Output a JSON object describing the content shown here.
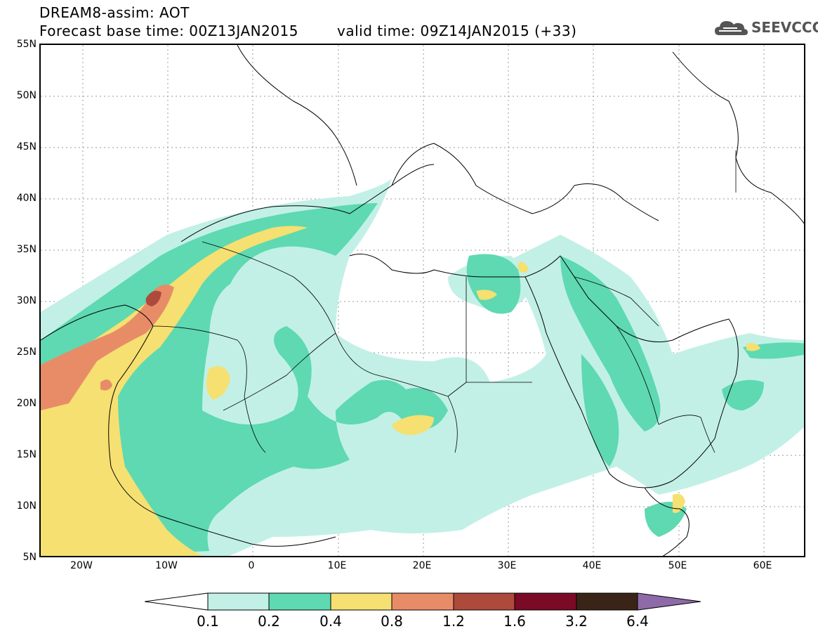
{
  "header": {
    "line1": "DREAM8-assim: AOT",
    "line2": "Forecast base time: 00Z13JAN2015",
    "valid": "valid time: 09Z14JAN2015 (+33)"
  },
  "logo": {
    "text": "SEEVCCC",
    "icon": "cloud-icon"
  },
  "axes": {
    "lat_labels": [
      "55N",
      "50N",
      "45N",
      "40N",
      "35N",
      "30N",
      "25N",
      "20N",
      "15N",
      "10N",
      "5N"
    ],
    "lon_labels": [
      "20W",
      "10W",
      "0",
      "10E",
      "20E",
      "30E",
      "40E",
      "50E",
      "60E"
    ],
    "lat_range": [
      5,
      55
    ],
    "lon_range": [
      -25,
      65
    ]
  },
  "colorbar": {
    "levels": [
      "0.1",
      "0.2",
      "0.4",
      "0.8",
      "1.2",
      "1.6",
      "3.2",
      "6.4"
    ],
    "colors": [
      "#c2f0e6",
      "#5ed9b1",
      "#f5e071",
      "#e88c68",
      "#ae4a3c",
      "#7a0a26",
      "#3a2418",
      "#8e6aa8"
    ]
  },
  "colors": {
    "c1": "#c2f0e6",
    "c2": "#5ed9b1",
    "c3": "#f5e071",
    "c4": "#e88c68",
    "c5": "#ae4a3c"
  }
}
